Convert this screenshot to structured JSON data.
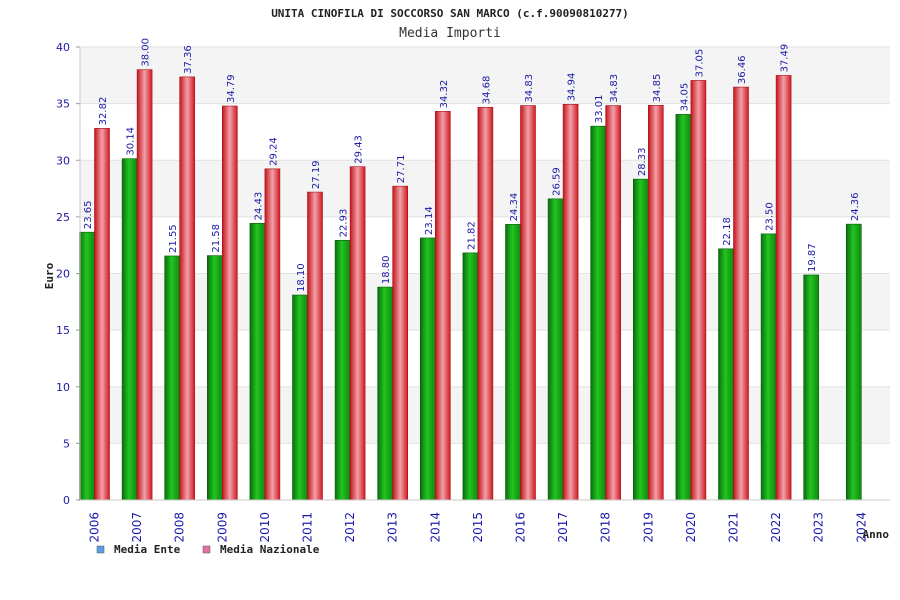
{
  "chart_data": {
    "type": "bar",
    "title": "UNITA CINOFILA DI SOCCORSO SAN MARCO (c.f.90090810277)",
    "subtitle": "Media Importi",
    "xlabel": "Anno",
    "ylabel": "Euro",
    "ylim": [
      0,
      40
    ],
    "yticks": [
      "0",
      "5",
      "10",
      "15",
      "20",
      "25",
      "30",
      "35",
      "40"
    ],
    "grid": true,
    "legend_position": "bottom-left",
    "categories": [
      "2006",
      "2007",
      "2008",
      "2009",
      "2010",
      "2011",
      "2012",
      "2013",
      "2014",
      "2015",
      "2016",
      "2017",
      "2018",
      "2019",
      "2020",
      "2021",
      "2022",
      "2023",
      "2024"
    ],
    "series": [
      {
        "name": "Media Ente",
        "color": "#1fa01f",
        "legend_color": "#5aa0e8",
        "values": [
          23.65,
          30.14,
          21.55,
          21.58,
          24.43,
          18.1,
          22.93,
          18.8,
          23.14,
          21.82,
          24.34,
          26.59,
          33.01,
          28.33,
          34.05,
          22.18,
          23.5,
          19.87,
          24.36
        ],
        "labels": [
          "23.65",
          "30.14",
          "21.55",
          "21.58",
          "24.43",
          "18.10",
          "22.93",
          "18.80",
          "23.14",
          "21.82",
          "24.34",
          "26.59",
          "33.01",
          "28.33",
          "34.05",
          "22.18",
          "23.50",
          "19.87",
          "24.36"
        ]
      },
      {
        "name": "Media Nazionale",
        "color": "#e0242c",
        "legend_color": "#e070a8",
        "values": [
          32.82,
          38.0,
          37.36,
          34.79,
          29.24,
          27.19,
          29.43,
          27.71,
          34.32,
          34.68,
          34.83,
          34.94,
          34.83,
          34.85,
          37.05,
          36.46,
          37.49,
          null,
          null
        ],
        "labels": [
          "32.82",
          "38.00",
          "37.36",
          "34.79",
          "29.24",
          "27.19",
          "29.43",
          "27.71",
          "34.32",
          "34.68",
          "34.83",
          "34.94",
          "34.83",
          "34.85",
          "37.05",
          "36.46",
          "37.49",
          null,
          null
        ]
      }
    ]
  }
}
